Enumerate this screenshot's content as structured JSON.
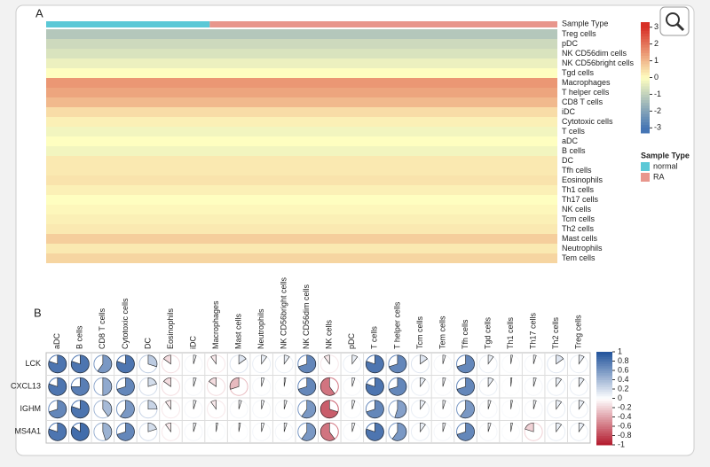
{
  "panel_a": {
    "label": "A",
    "annotation_label": "Sample Type",
    "rows": [
      "Treg cells",
      "pDC",
      "NK CD56dim cells",
      "NK CD56bright cells",
      "Tgd cells",
      "Macrophages",
      "T helper cells",
      "CD8 T cells",
      "iDC",
      "Cytotoxic cells",
      "T cells",
      "aDC",
      "B cells",
      "DC",
      "Tfh cells",
      "Eosinophils",
      "Th1 cells",
      "Th17 cells",
      "NK cells",
      "Tcm cells",
      "Th2 cells",
      "Mast cells",
      "Neutrophils",
      "Tem cells"
    ],
    "values": [
      -1.2,
      -0.8,
      -0.6,
      -0.3,
      0,
      1.5,
      1.3,
      1.0,
      0.5,
      0.2,
      -0.2,
      0,
      -0.2,
      0.3,
      0.3,
      0.4,
      0.2,
      0,
      0.1,
      0.2,
      0.3,
      0.7,
      0.3,
      0.6
    ],
    "colorbar_lim": [
      -3.3,
      3.3
    ],
    "colorbar_ticks": [
      3,
      2,
      1,
      0,
      -1,
      -2,
      -3
    ],
    "legend_title": "Sample Type",
    "groups": [
      {
        "name": "normal",
        "color": "#5bc8d6"
      },
      {
        "name": "RA",
        "color": "#e8968c"
      }
    ]
  },
  "panel_b": {
    "label": "B",
    "columns": [
      "aDC",
      "B cells",
      "CD8 T cells",
      "Cytotoxic cells",
      "DC",
      "Eosinophils",
      "iDC",
      "Macrophages",
      "Mast cells",
      "Neutrophils",
      "NK CD56bright cells",
      "NK CD56dim cells",
      "NK cells",
      "pDC",
      "T cells",
      "T helper cells",
      "Tcm cells",
      "Tem cells",
      "Tfh cells",
      "Tgd cells",
      "Th1 cells",
      "Th17 cells",
      "Th2 cells",
      "Treg cells"
    ],
    "rows": [
      "LCK",
      "CXCL13",
      "IGHM",
      "MS4A1"
    ],
    "values": [
      [
        0.8,
        0.8,
        0.6,
        0.8,
        0.3,
        -0.15,
        0.05,
        -0.1,
        0.15,
        0.1,
        0.1,
        0.7,
        -0.1,
        0.1,
        0.8,
        0.7,
        0.15,
        0.05,
        0.7,
        0.1,
        0.03,
        0.05,
        0.15,
        0.1
      ],
      [
        0.8,
        0.75,
        0.5,
        0.7,
        0.2,
        -0.15,
        0.05,
        -0.15,
        -0.3,
        0.05,
        0.03,
        0.7,
        -0.6,
        0.05,
        0.8,
        0.7,
        0.1,
        0.05,
        0.7,
        0.1,
        0.02,
        0.05,
        0.1,
        0.1
      ],
      [
        0.7,
        0.8,
        0.4,
        0.6,
        0.25,
        -0.1,
        0.05,
        -0.1,
        0.05,
        0.05,
        0.05,
        0.6,
        -0.7,
        0.05,
        0.7,
        0.55,
        0.1,
        0.05,
        0.6,
        0.05,
        0.03,
        0.05,
        0.1,
        0.1
      ],
      [
        0.8,
        0.85,
        0.45,
        0.7,
        0.2,
        -0.1,
        0.05,
        0.03,
        0.03,
        0.05,
        0.05,
        0.6,
        -0.6,
        0.05,
        0.8,
        0.6,
        0.1,
        0.05,
        0.7,
        0.05,
        0.03,
        -0.2,
        0.1,
        0.1
      ]
    ],
    "colorbar_lim": [
      -1,
      1
    ],
    "colorbar_ticks": [
      1,
      0.8,
      0.6,
      0.4,
      0.2,
      0,
      -0.2,
      -0.4,
      -0.6,
      -0.8,
      -1
    ]
  }
}
